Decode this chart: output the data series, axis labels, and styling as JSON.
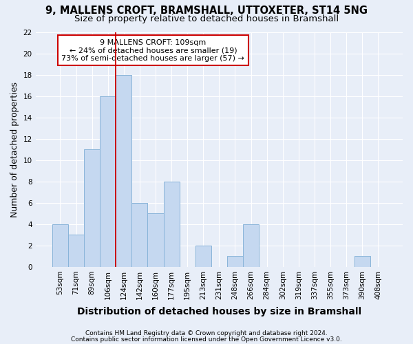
{
  "title_line1": "9, MALLENS CROFT, BRAMSHALL, UTTOXETER, ST14 5NG",
  "title_line2": "Size of property relative to detached houses in Bramshall",
  "xlabel": "Distribution of detached houses by size in Bramshall",
  "ylabel": "Number of detached properties",
  "bar_labels": [
    "53sqm",
    "71sqm",
    "89sqm",
    "106sqm",
    "124sqm",
    "142sqm",
    "160sqm",
    "177sqm",
    "195sqm",
    "213sqm",
    "231sqm",
    "248sqm",
    "266sqm",
    "284sqm",
    "302sqm",
    "319sqm",
    "337sqm",
    "355sqm",
    "373sqm",
    "390sqm",
    "408sqm"
  ],
  "bar_values": [
    4,
    3,
    11,
    16,
    18,
    6,
    5,
    8,
    0,
    2,
    0,
    1,
    4,
    0,
    0,
    0,
    0,
    0,
    0,
    1,
    0
  ],
  "bar_color": "#c5d8f0",
  "bar_edge_color": "#89b4d9",
  "vline_x": 3.5,
  "vline_color": "#cc0000",
  "annotation_line1": "9 MALLENS CROFT: 109sqm",
  "annotation_line2": "← 24% of detached houses are smaller (19)",
  "annotation_line3": "73% of semi-detached houses are larger (57) →",
  "annotation_box_color": "#ffffff",
  "annotation_box_edge_color": "#cc0000",
  "ylim": [
    0,
    22
  ],
  "yticks": [
    0,
    2,
    4,
    6,
    8,
    10,
    12,
    14,
    16,
    18,
    20,
    22
  ],
  "footer_line1": "Contains HM Land Registry data © Crown copyright and database right 2024.",
  "footer_line2": "Contains public sector information licensed under the Open Government Licence v3.0.",
  "background_color": "#e8eef8",
  "grid_color": "#ffffff",
  "title_fontsize": 10.5,
  "subtitle_fontsize": 9.5,
  "ylabel_fontsize": 9,
  "xlabel_fontsize": 10,
  "tick_fontsize": 7.5,
  "annotation_fontsize": 8,
  "footer_fontsize": 6.5
}
